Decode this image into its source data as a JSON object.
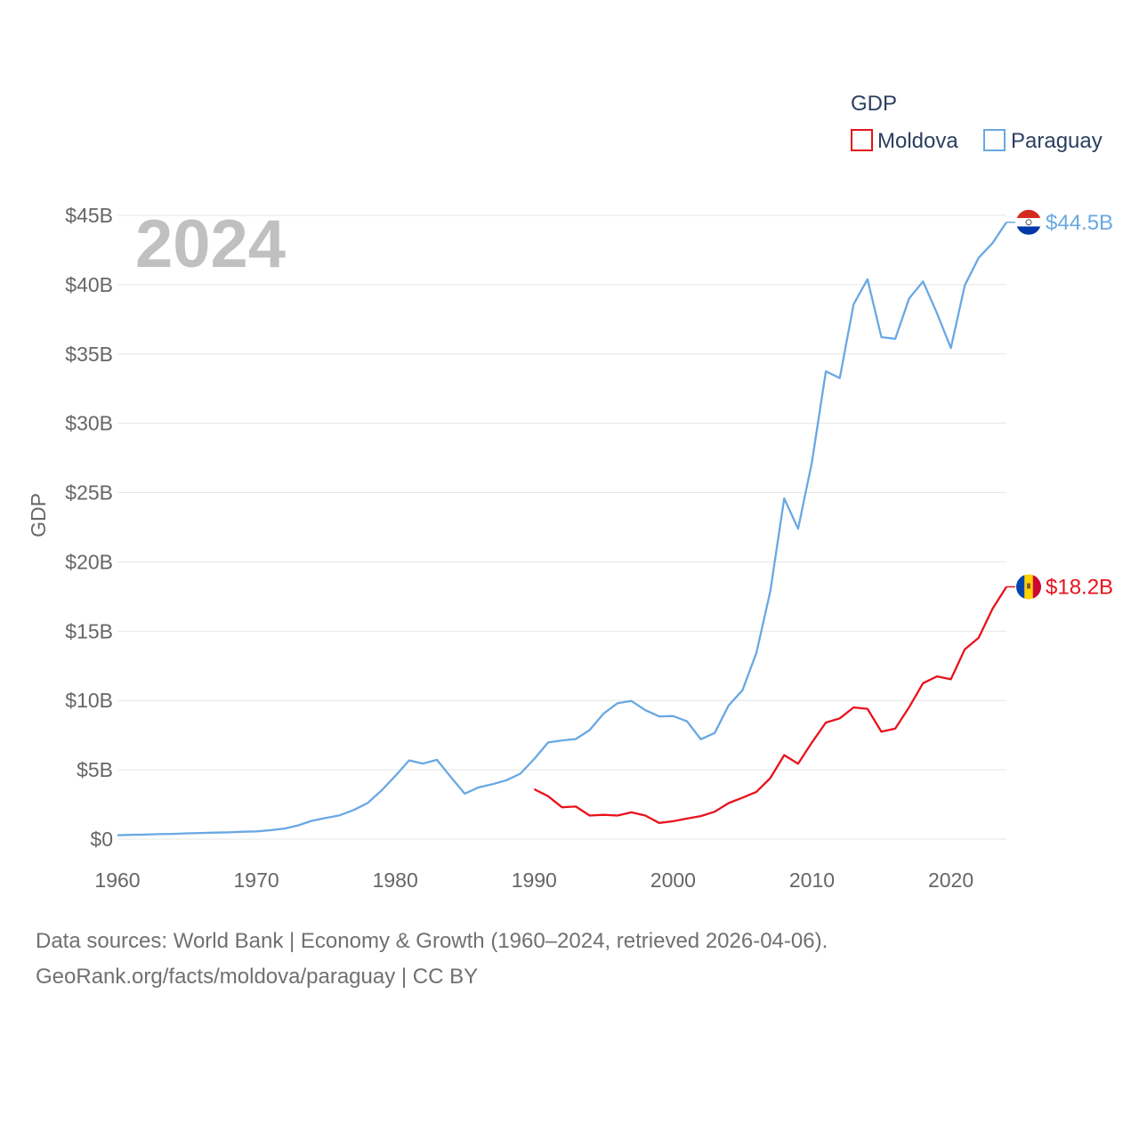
{
  "chart_data": {
    "type": "line",
    "title": "",
    "year_label": "2024",
    "xlabel": "",
    "ylabel": "GDP",
    "xlim": [
      1960,
      2024
    ],
    "ylim": [
      0,
      45
    ],
    "x_ticks": [
      1960,
      1970,
      1980,
      1990,
      2000,
      2010,
      2020
    ],
    "x_tick_labels": [
      "1960",
      "1970",
      "1980",
      "1990",
      "2000",
      "2010",
      "2020"
    ],
    "y_ticks": [
      0,
      5,
      10,
      15,
      20,
      25,
      30,
      35,
      40,
      45
    ],
    "y_tick_labels": [
      "$0",
      "$5B",
      "$10B",
      "$15B",
      "$20B",
      "$25B",
      "$30B",
      "$35B",
      "$40B",
      "$45B"
    ],
    "legend": {
      "title": "GDP",
      "position": "top-right",
      "entries": [
        "Moldova",
        "Paraguay"
      ]
    },
    "series": [
      {
        "name": "Moldova",
        "color": "#e8121c",
        "end_label": "$18.2B",
        "x": [
          1990,
          1991,
          1992,
          1993,
          1994,
          1995,
          1996,
          1997,
          1998,
          1999,
          2000,
          2001,
          2002,
          2003,
          2004,
          2005,
          2006,
          2007,
          2008,
          2009,
          2010,
          2011,
          2012,
          2013,
          2014,
          2015,
          2016,
          2017,
          2018,
          2019,
          2020,
          2021,
          2022,
          2023,
          2024
        ],
        "values": [
          3.6,
          3.1,
          2.3,
          2.35,
          1.7,
          1.75,
          1.7,
          1.93,
          1.7,
          1.17,
          1.29,
          1.48,
          1.66,
          1.98,
          2.6,
          2.99,
          3.41,
          4.4,
          6.06,
          5.44,
          6.98,
          8.41,
          8.71,
          9.5,
          9.4,
          7.75,
          7.98,
          9.52,
          11.25,
          11.74,
          11.53,
          13.69,
          14.53,
          16.62,
          18.2
        ]
      },
      {
        "name": "Paraguay",
        "color": "#69a8e3",
        "end_label": "$44.5B",
        "x": [
          1960,
          1961,
          1962,
          1963,
          1964,
          1965,
          1966,
          1967,
          1968,
          1969,
          1970,
          1971,
          1972,
          1973,
          1974,
          1975,
          1976,
          1977,
          1978,
          1979,
          1980,
          1981,
          1982,
          1983,
          1984,
          1985,
          1986,
          1987,
          1988,
          1989,
          1990,
          1991,
          1992,
          1993,
          1994,
          1995,
          1996,
          1997,
          1998,
          1999,
          2000,
          2001,
          2002,
          2003,
          2004,
          2005,
          2006,
          2007,
          2008,
          2009,
          2010,
          2011,
          2012,
          2013,
          2014,
          2015,
          2016,
          2017,
          2018,
          2019,
          2020,
          2021,
          2022,
          2023,
          2024
        ],
        "values": [
          0.28,
          0.31,
          0.33,
          0.36,
          0.38,
          0.42,
          0.44,
          0.47,
          0.49,
          0.53,
          0.56,
          0.64,
          0.76,
          0.99,
          1.32,
          1.53,
          1.72,
          2.1,
          2.6,
          3.5,
          4.55,
          5.68,
          5.45,
          5.72,
          4.48,
          3.28,
          3.73,
          3.96,
          4.25,
          4.72,
          5.78,
          6.97,
          7.12,
          7.22,
          7.87,
          9.06,
          9.8,
          9.97,
          9.3,
          8.85,
          8.88,
          8.5,
          7.2,
          7.66,
          9.64,
          10.74,
          13.43,
          17.86,
          24.58,
          22.39,
          27.21,
          33.75,
          33.26,
          38.59,
          40.39,
          36.21,
          36.09,
          39.01,
          40.23,
          37.93,
          35.43,
          39.95,
          41.94,
          43.0,
          44.5
        ]
      }
    ]
  },
  "footer": {
    "line1": "Data sources: World Bank | Economy & Growth (1960–2024, retrieved 2026-04-06).",
    "line2": "GeoRank.org/facts/moldova/paraguay | CC BY"
  },
  "flags": {
    "moldova": "moldova-flag-icon",
    "paraguay": "paraguay-flag-icon"
  }
}
